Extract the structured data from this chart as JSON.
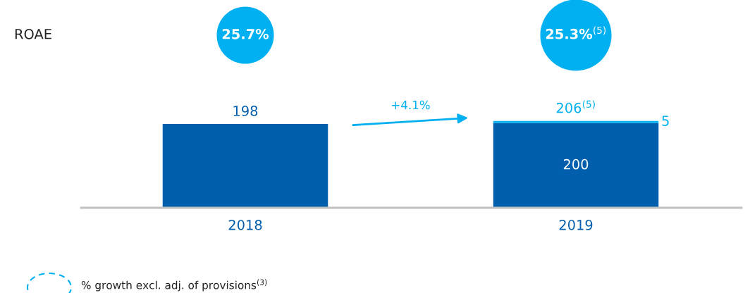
{
  "chart_data": {
    "type": "bar",
    "stacked": true,
    "categories": [
      "2018",
      "2019"
    ],
    "series": [
      {
        "color": "#005eac",
        "values": [
          198,
          200
        ],
        "value_labels": [
          null,
          "200"
        ]
      },
      {
        "color": "#00b0f0",
        "values": [
          null,
          5
        ],
        "value_labels": [
          null,
          "5"
        ]
      }
    ],
    "totals": [
      "198",
      "206$^{(5)}$"
    ],
    "annotations": [
      "ROAE",
      "25.7%",
      "25.3%$^{(5)}$",
      "+4.1%",
      "% growth excl. adj. of provisions$^{(3)}$"
    ]
  }
}
